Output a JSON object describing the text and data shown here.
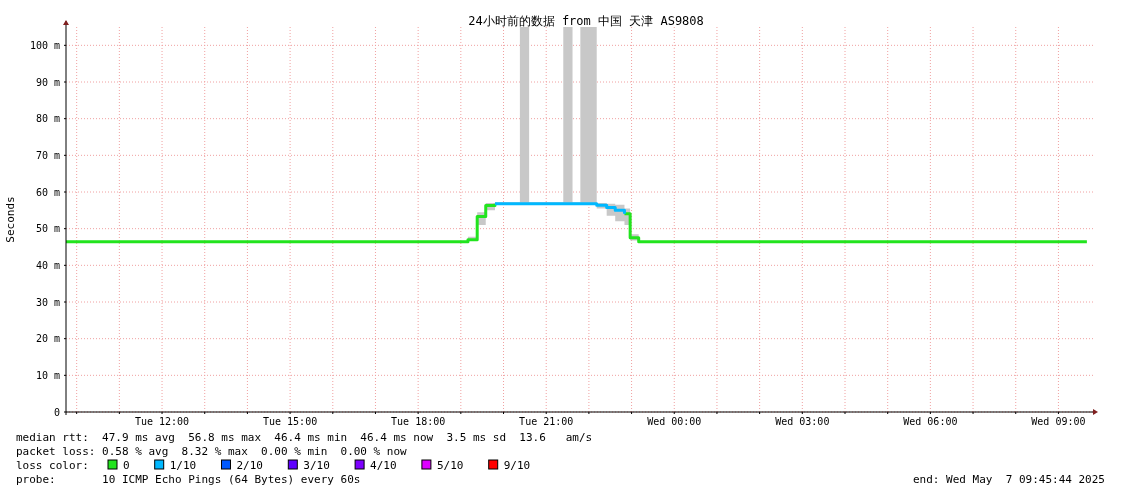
{
  "chart_data": {
    "type": "step",
    "title": "24小时前的数据 from 中国 天津 AS9808",
    "ylabel": "Seconds",
    "legend_title": "loss color:",
    "legend": "bottom",
    "grid": true,
    "x": [
      "2025-05-06T09:45",
      "2025-05-06T19:10",
      "2025-05-06T19:23",
      "2025-05-06T19:35",
      "2025-05-06T19:48",
      "2025-05-06T20:23",
      "2025-05-06T20:36",
      "2025-05-06T21:24",
      "2025-05-06T21:37",
      "2025-05-06T21:48",
      "2025-05-06T22:11",
      "2025-05-06T22:25",
      "2025-05-06T22:37",
      "2025-05-06T22:50",
      "2025-05-06T22:58",
      "2025-05-06T23:10",
      "2025-05-07T09:40"
    ],
    "series": [
      {
        "name": "0",
        "color": "#22e41e",
        "values": [
          46.4,
          47.0,
          53.3,
          56.3,
          56.8,
          null,
          null,
          null,
          null,
          null,
          null,
          null,
          null,
          54.1,
          47.5,
          46.4,
          46.4
        ],
        "lower": [
          null,
          46.8,
          51.0,
          55.0,
          56.6,
          56.6,
          56.6,
          56.6,
          56.6,
          56.6,
          55.5,
          53.5,
          52.0,
          51.0,
          46.8,
          46.4,
          null
        ],
        "upper": [
          null,
          47.8,
          54.5,
          57.0,
          57.2,
          105,
          57.2,
          105,
          57.2,
          105,
          57.0,
          56.8,
          56.5,
          55.5,
          48.5,
          46.4,
          null
        ]
      },
      {
        "name": "1/10",
        "color": "#00b8ff",
        "values": [
          null,
          null,
          null,
          null,
          56.8,
          56.8,
          56.8,
          56.8,
          56.8,
          56.8,
          56.4,
          55.8,
          55.0,
          54.1,
          null,
          null,
          null
        ]
      },
      {
        "name": "2/10",
        "color": "#0059ff",
        "values": [
          null,
          null,
          null,
          null,
          null,
          null,
          null,
          null,
          null,
          null,
          null,
          null,
          null,
          null,
          null,
          null,
          null
        ]
      },
      {
        "name": "3/10",
        "color": "#5e00ff",
        "values": [
          null,
          null,
          null,
          null,
          null,
          null,
          null,
          null,
          null,
          null,
          null,
          null,
          null,
          null,
          null,
          null,
          null
        ]
      },
      {
        "name": "4/10",
        "color": "#7e00ff",
        "values": [
          null,
          null,
          null,
          null,
          null,
          null,
          null,
          null,
          null,
          null,
          null,
          null,
          null,
          null,
          null,
          null,
          null
        ]
      },
      {
        "name": "5/10",
        "color": "#dd00ff",
        "values": [
          null,
          null,
          null,
          null,
          null,
          null,
          null,
          null,
          null,
          null,
          null,
          null,
          null,
          null,
          null,
          null,
          null
        ]
      },
      {
        "name": "9/10",
        "color": "#ff0000",
        "values": [
          null,
          null,
          null,
          null,
          null,
          null,
          null,
          null,
          null,
          null,
          null,
          null,
          null,
          null,
          null,
          null,
          null
        ]
      }
    ],
    "xlim": [
      "2025-05-06T09:45",
      "2025-05-07T09:50"
    ],
    "xticks": [
      {
        "value": "2025-05-06T10:00",
        "label": null
      },
      {
        "value": "2025-05-06T11:00",
        "label": null
      },
      {
        "value": "2025-05-06T12:00",
        "label": "Tue 12:00"
      },
      {
        "value": "2025-05-06T13:00",
        "label": null
      },
      {
        "value": "2025-05-06T14:00",
        "label": null
      },
      {
        "value": "2025-05-06T15:00",
        "label": "Tue 15:00"
      },
      {
        "value": "2025-05-06T16:00",
        "label": null
      },
      {
        "value": "2025-05-06T17:00",
        "label": null
      },
      {
        "value": "2025-05-06T18:00",
        "label": "Tue 18:00"
      },
      {
        "value": "2025-05-06T19:00",
        "label": null
      },
      {
        "value": "2025-05-06T20:00",
        "label": null
      },
      {
        "value": "2025-05-06T21:00",
        "label": "Tue 21:00"
      },
      {
        "value": "2025-05-06T22:00",
        "label": null
      },
      {
        "value": "2025-05-06T23:00",
        "label": null
      },
      {
        "value": "2025-05-07T00:00",
        "label": "Wed 00:00"
      },
      {
        "value": "2025-05-07T01:00",
        "label": null
      },
      {
        "value": "2025-05-07T02:00",
        "label": null
      },
      {
        "value": "2025-05-07T03:00",
        "label": "Wed 03:00"
      },
      {
        "value": "2025-05-07T04:00",
        "label": null
      },
      {
        "value": "2025-05-07T05:00",
        "label": null
      },
      {
        "value": "2025-05-07T06:00",
        "label": "Wed 06:00"
      },
      {
        "value": "2025-05-07T07:00",
        "label": null
      },
      {
        "value": "2025-05-07T08:00",
        "label": null
      },
      {
        "value": "2025-05-07T09:00",
        "label": "Wed 09:00"
      }
    ],
    "ylim": [
      0,
      105
    ],
    "yticks": [
      0,
      {
        "value": 10,
        "label": "10 m"
      },
      {
        "value": 20,
        "label": "20 m"
      },
      {
        "value": 30,
        "label": "30 m"
      },
      {
        "value": 40,
        "label": "40 m"
      },
      {
        "value": 50,
        "label": "50 m"
      },
      {
        "value": 60,
        "label": "60 m"
      },
      {
        "value": 70,
        "label": "70 m"
      },
      {
        "value": 80,
        "label": "80 m"
      },
      {
        "value": 90,
        "label": "90 m"
      },
      {
        "value": 100,
        "label": "100 m"
      }
    ],
    "annotations": [
      "median rtt:  47.9 ms avg  56.8 ms max  46.4 ms min  46.4 ms now  3.5 ms sd  13.6   am/s",
      "packet loss: 0.58 % avg  8.32 % max  0.00 % min  0.00 % now",
      "probe:       10 ICMP Echo Pings (64 Bytes) every 60s",
      "end: Wed May  7 09:45:44 2025"
    ]
  }
}
